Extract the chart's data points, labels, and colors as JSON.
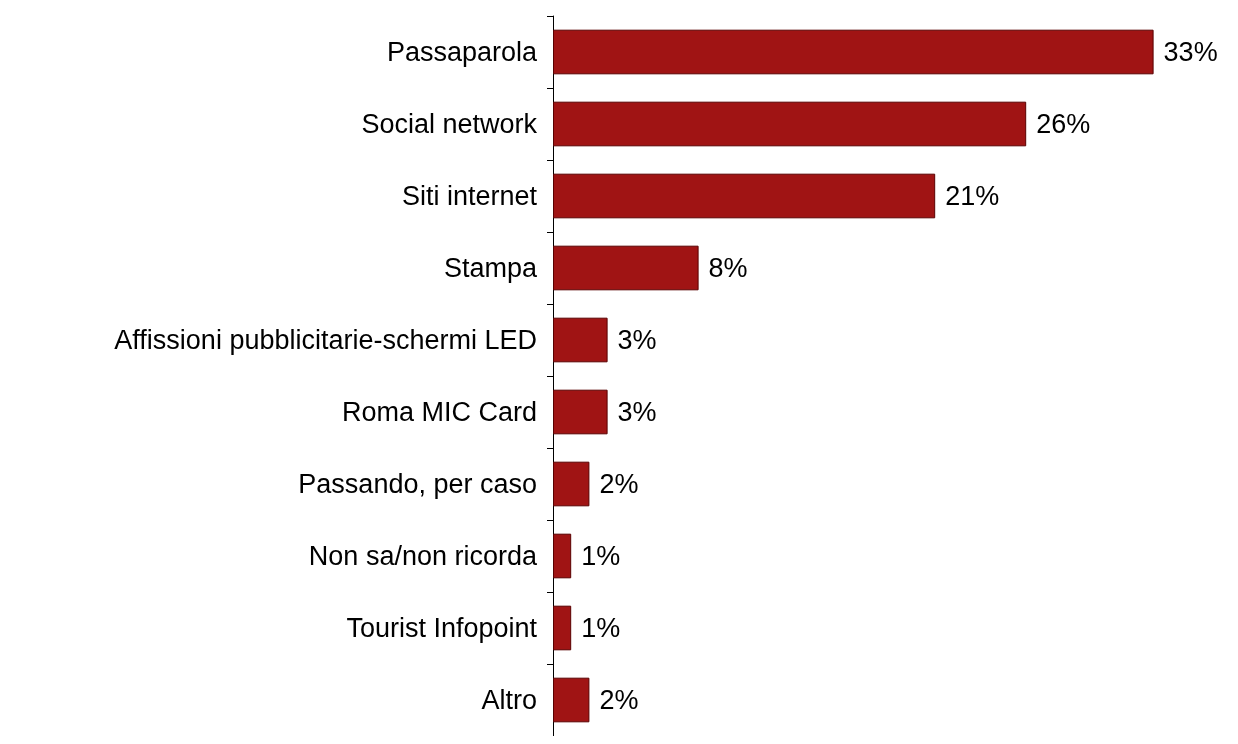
{
  "chart_data": {
    "type": "bar",
    "orientation": "horizontal",
    "categories": [
      "Passaparola",
      "Social network",
      "Siti internet",
      "Stampa",
      "Affissioni pubblicitarie-schermi LED",
      "Roma MIC Card",
      "Passando, per caso",
      "Non sa/non ricorda",
      "Tourist Infopoint",
      "Altro"
    ],
    "values": [
      33,
      26,
      21,
      8,
      3,
      3,
      2,
      1,
      1,
      2
    ],
    "value_labels": [
      "33%",
      "26%",
      "21%",
      "8%",
      "3%",
      "3%",
      "2%",
      "1%",
      "1%",
      "2%"
    ],
    "color": "#a01414"
  }
}
